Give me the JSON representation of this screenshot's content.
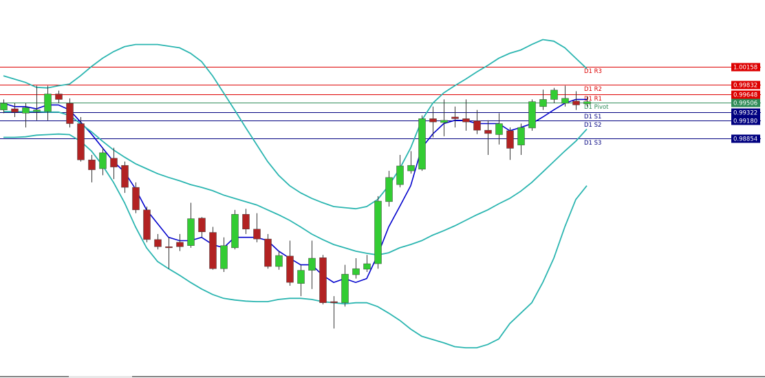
{
  "chart_data": {
    "type": "candlestick",
    "ylim": [
      0.9449,
      1.0137
    ],
    "up_color": "#33cc33",
    "down_color": "#b22222",
    "wick_color": "#333333",
    "open": [
      0.9937,
      0.9939,
      0.9931,
      0.9934,
      0.9934,
      0.9966,
      0.9949,
      0.9912,
      0.9846,
      0.983,
      0.9849,
      0.9836,
      0.9796,
      0.9755,
      0.9701,
      0.9688,
      0.9696,
      0.969,
      0.974,
      0.9714,
      0.9648,
      0.9686,
      0.9747,
      0.972,
      0.9702,
      0.9652,
      0.9671,
      0.9621,
      0.9645,
      0.9668,
      0.9588,
      0.9586,
      0.9637,
      0.9647,
      0.9657,
      0.977,
      0.9801,
      0.9826,
      0.9829,
      0.9921,
      0.9914,
      0.9924,
      0.9921,
      0.9917,
      0.99,
      0.9892,
      0.9899,
      0.9873,
      0.9904,
      0.9943,
      0.9956,
      0.9949,
      0.9953,
      0.9948
    ],
    "high": [
      0.9956,
      0.9949,
      0.9949,
      0.9981,
      0.9981,
      0.9972,
      0.9958,
      0.9924,
      0.9855,
      0.9868,
      0.9868,
      0.9843,
      0.9805,
      0.9761,
      0.9711,
      0.9705,
      0.9711,
      0.9768,
      0.9742,
      0.9724,
      0.9705,
      0.9755,
      0.9757,
      0.9749,
      0.9711,
      0.968,
      0.9699,
      0.9655,
      0.9699,
      0.9673,
      0.9598,
      0.9655,
      0.9667,
      0.9673,
      0.978,
      0.9826,
      0.9855,
      0.9862,
      0.9927,
      0.9943,
      0.9956,
      0.9943,
      0.9956,
      0.9937,
      0.9918,
      0.9931,
      0.9905,
      0.9912,
      0.9956,
      0.9974,
      0.9977,
      0.9981,
      0.9971,
      0.9962
    ],
    "low": [
      0.9931,
      0.9924,
      0.9905,
      0.9918,
      0.9918,
      0.9949,
      0.9905,
      0.9843,
      0.9805,
      0.9818,
      0.9811,
      0.9786,
      0.9749,
      0.9696,
      0.9683,
      0.9648,
      0.968,
      0.9686,
      0.9705,
      0.9646,
      0.9642,
      0.9683,
      0.9711,
      0.9696,
      0.9648,
      0.9646,
      0.9617,
      0.9598,
      0.9611,
      0.9583,
      0.9539,
      0.9579,
      0.963,
      0.9642,
      0.9648,
      0.9761,
      0.9796,
      0.9821,
      0.9826,
      0.9887,
      0.9889,
      0.9905,
      0.9899,
      0.9893,
      0.9855,
      0.9874,
      0.9846,
      0.9855,
      0.9899,
      0.9937,
      0.9949,
      0.9943,
      0.9937,
      0.9943
    ],
    "close": [
      0.9949,
      0.9933,
      0.9941,
      0.9937,
      0.9966,
      0.9956,
      0.9912,
      0.9846,
      0.9828,
      0.9859,
      0.9833,
      0.9796,
      0.9755,
      0.9701,
      0.9688,
      0.9686,
      0.9688,
      0.9739,
      0.9715,
      0.9648,
      0.969,
      0.9747,
      0.972,
      0.9702,
      0.9652,
      0.9672,
      0.9623,
      0.9645,
      0.9667,
      0.9586,
      0.9586,
      0.9638,
      0.9648,
      0.9657,
      0.9771,
      0.9814,
      0.9835,
      0.9836,
      0.9921,
      0.9915,
      0.9918,
      0.9921,
      0.9915,
      0.99,
      0.9894,
      0.9912,
      0.9867,
      0.9905,
      0.9952,
      0.9956,
      0.9973,
      0.9958,
      0.9946,
      0.9952
    ],
    "lines": [
      {
        "color": "#0000cc",
        "values": [
          0.9949,
          0.9943,
          0.9943,
          0.9939,
          0.9946,
          0.9946,
          0.9937,
          0.9915,
          0.9893,
          0.9868,
          0.9843,
          0.9824,
          0.9793,
          0.9755,
          0.973,
          0.9705,
          0.9699,
          0.9699,
          0.9705,
          0.9692,
          0.9686,
          0.9705,
          0.9705,
          0.9705,
          0.9699,
          0.968,
          0.9667,
          0.9655,
          0.9655,
          0.9636,
          0.9623,
          0.963,
          0.9623,
          0.963,
          0.9673,
          0.9724,
          0.9761,
          0.9799,
          0.9868,
          0.9893,
          0.9912,
          0.9918,
          0.9918,
          0.9912,
          0.9912,
          0.9912,
          0.9899,
          0.9905,
          0.9912,
          0.9924,
          0.9937,
          0.9949,
          0.9956,
          0.9956
        ]
      },
      {
        "color": "#2ab5b0",
        "values": [
          0.9999,
          0.9993,
          0.9987,
          0.9978,
          0.9977,
          0.9981,
          0.9984,
          0.9999,
          1.0016,
          1.0031,
          1.0043,
          1.0052,
          1.0056,
          1.0056,
          1.0056,
          1.0053,
          1.005,
          1.004,
          1.0025,
          0.9999,
          0.9968,
          0.9937,
          0.9905,
          0.9874,
          0.9843,
          0.9818,
          0.9799,
          0.9786,
          0.9776,
          0.9768,
          0.9761,
          0.9759,
          0.9757,
          0.9761,
          0.9774,
          0.9799,
          0.983,
          0.9868,
          0.9918,
          0.9949,
          0.9968,
          0.9981,
          0.9993,
          1.0006,
          1.0018,
          1.0031,
          1.004,
          1.0046,
          1.0056,
          1.0065,
          1.0062,
          1.005,
          1.0031,
          1.0012
        ]
      },
      {
        "color": "#2ab5b0",
        "values": [
          0.9934,
          0.9934,
          0.9934,
          0.9934,
          0.9933,
          0.9933,
          0.9927,
          0.9912,
          0.9897,
          0.988,
          0.9864,
          0.9851,
          0.9839,
          0.983,
          0.9821,
          0.9814,
          0.9808,
          0.9801,
          0.9796,
          0.979,
          0.9782,
          0.9776,
          0.977,
          0.9764,
          0.9755,
          0.9746,
          0.9736,
          0.9724,
          0.9711,
          0.9701,
          0.9692,
          0.9686,
          0.968,
          0.9676,
          0.9673,
          0.9677,
          0.9686,
          0.9692,
          0.9699,
          0.9709,
          0.9717,
          0.9726,
          0.9736,
          0.9746,
          0.9755,
          0.9766,
          0.9776,
          0.9789,
          0.9805,
          0.9824,
          0.9843,
          0.9862,
          0.988,
          0.9902
        ]
      },
      {
        "color": "#2ab5b0",
        "values": [
          0.9887,
          0.9887,
          0.9888,
          0.9891,
          0.9892,
          0.9893,
          0.9892,
          0.988,
          0.9862,
          0.9836,
          0.9805,
          0.9768,
          0.9724,
          0.9686,
          0.9661,
          0.9648,
          0.9636,
          0.9623,
          0.9611,
          0.9601,
          0.9594,
          0.9591,
          0.9589,
          0.9588,
          0.9588,
          0.9592,
          0.9594,
          0.9594,
          0.9592,
          0.9588,
          0.9586,
          0.9584,
          0.9586,
          0.9586,
          0.9579,
          0.9567,
          0.9554,
          0.9538,
          0.9525,
          0.9519,
          0.9513,
          0.9506,
          0.9504,
          0.9504,
          0.951,
          0.952,
          0.9548,
          0.9567,
          0.9586,
          0.9623,
          0.9667,
          0.9724,
          0.9774,
          0.9799
        ]
      }
    ],
    "levels": [
      {
        "name": "D1 R3",
        "value": 1.00158,
        "color": "#dd0000"
      },
      {
        "name": "D1 R2",
        "value": 0.99832,
        "color": "#dd0000"
      },
      {
        "name": "D1 R1",
        "value": 0.99648,
        "color": "#dd0000"
      },
      {
        "name": "D1 Pivot",
        "value": 0.99506,
        "color": "#2e8b57"
      },
      {
        "name": "D1 S1",
        "value": 0.99322,
        "color": "#000080"
      },
      {
        "name": "D1 S2",
        "value": {
          "value": 0.9918,
          "label": "0.99180"
        },
        "color": "#000080"
      },
      {
        "name": "D1 S3",
        "value": 0.98854,
        "color": "#000080"
      }
    ]
  }
}
